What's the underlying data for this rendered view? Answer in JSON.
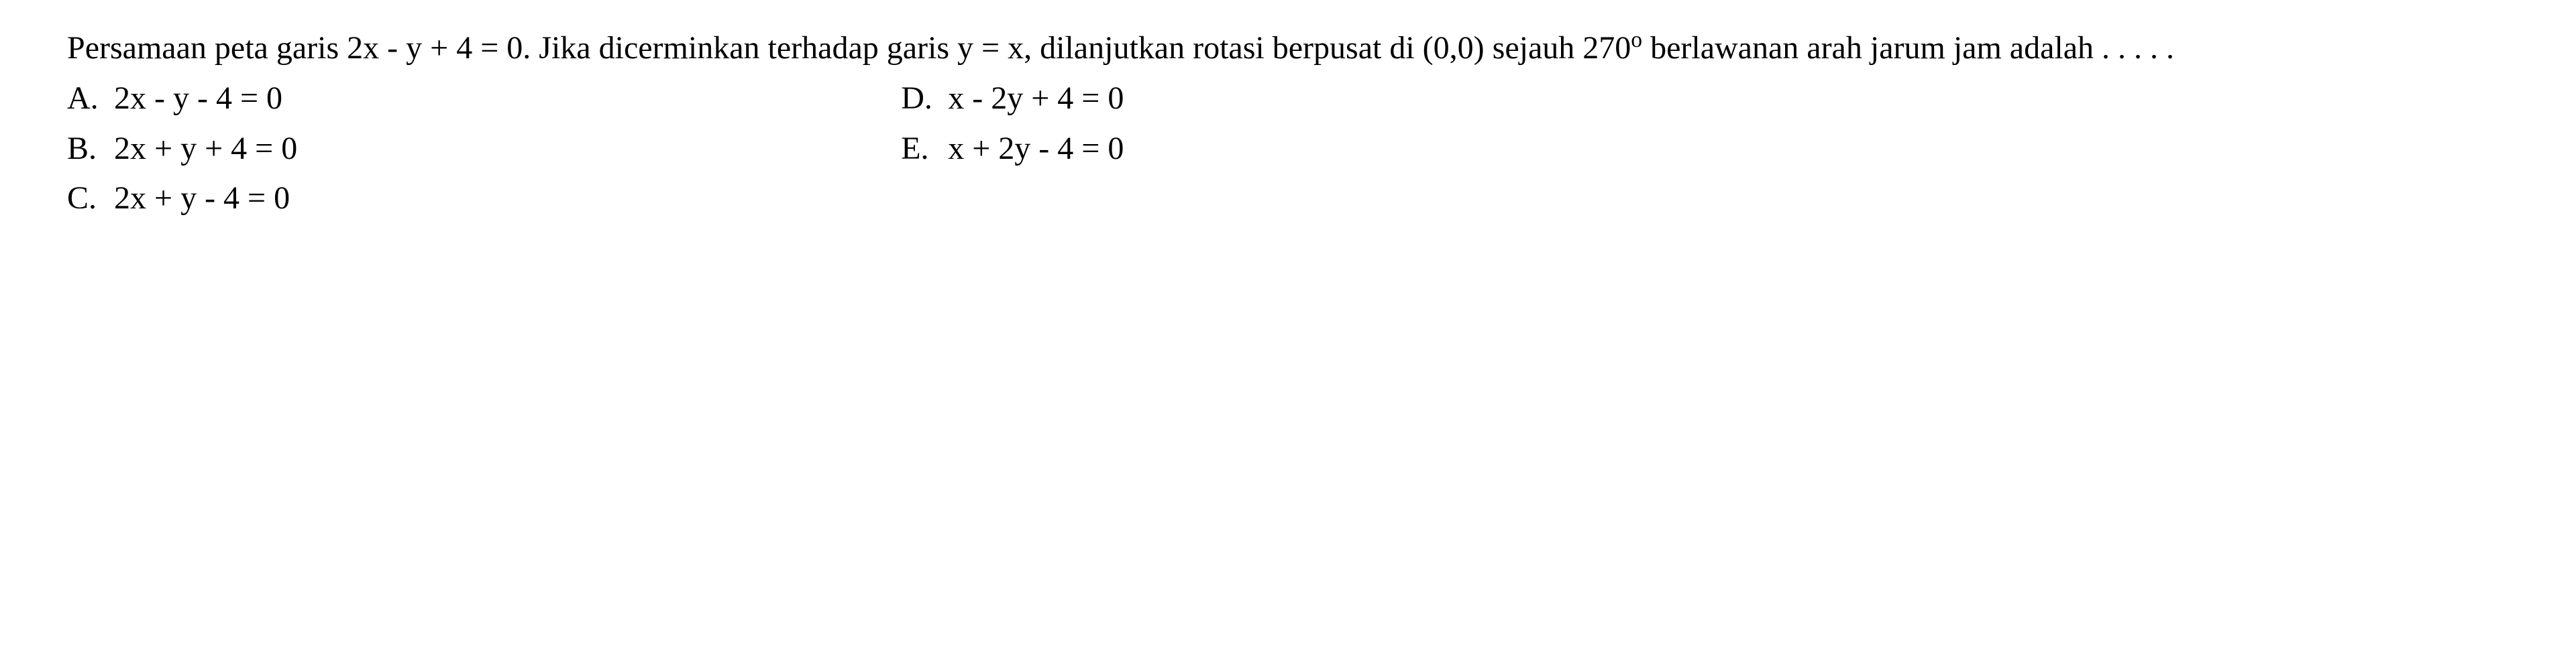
{
  "question": {
    "stem_html": "Persamaan peta garis 2x - y + 4 = 0. Jika dicerminkan terhadap garis y = x, dilanjutkan rotasi berpusat di (0,0) sejauh 270<span class=\"sup\">o</span> berlawanan arah jarum jam adalah . . . . .",
    "options": {
      "left": [
        {
          "letter": "A.",
          "text": "2x - y - 4 = 0"
        },
        {
          "letter": "B.",
          "text": "2x + y + 4 = 0"
        },
        {
          "letter": "C.",
          "text": "2x + y - 4 = 0"
        }
      ],
      "right": [
        {
          "letter": "D.",
          "text": "x - 2y + 4 = 0"
        },
        {
          "letter": "E.",
          "text": "x + 2y - 4 = 0"
        }
      ]
    }
  },
  "style": {
    "font_family": "Times New Roman",
    "font_size_pt": 36,
    "text_color": "#000000",
    "background_color": "#ffffff"
  }
}
